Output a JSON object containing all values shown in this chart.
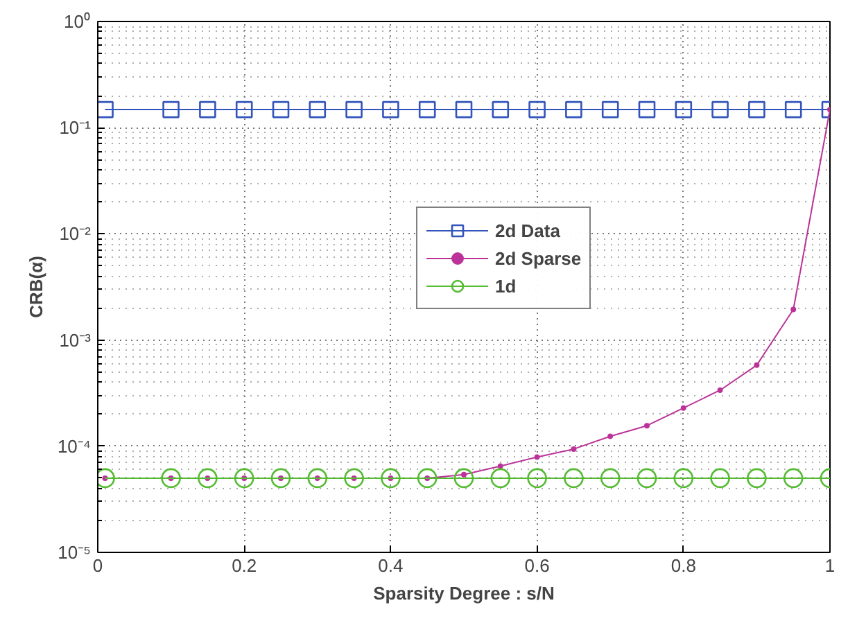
{
  "chart_data": {
    "type": "line",
    "xlabel": "Sparsity Degree : s/N",
    "ylabel": "CRB(α)",
    "x": [
      0.01,
      0.1,
      0.15,
      0.2,
      0.25,
      0.3,
      0.35,
      0.4,
      0.45,
      0.5,
      0.55,
      0.6,
      0.65,
      0.7,
      0.75,
      0.8,
      0.85,
      0.9,
      0.95,
      1.0
    ],
    "series": [
      {
        "name": "2d Data",
        "color": "#3355bb",
        "marker": "square",
        "values": [
          0.148,
          0.148,
          0.148,
          0.148,
          0.148,
          0.148,
          0.148,
          0.148,
          0.148,
          0.148,
          0.148,
          0.148,
          0.148,
          0.148,
          0.148,
          0.148,
          0.148,
          0.148,
          0.148,
          0.148
        ]
      },
      {
        "name": "2d Sparse",
        "color": "#bb3399",
        "marker": "point",
        "values": [
          5e-05,
          5e-05,
          5e-05,
          5e-05,
          5e-05,
          5e-05,
          5e-05,
          5e-05,
          5e-05,
          5.4e-05,
          6.5e-05,
          7.9e-05,
          9.4e-05,
          0.000124,
          0.000156,
          0.000229,
          0.000337,
          0.00058,
          0.00194,
          0.148
        ]
      },
      {
        "name": "1d",
        "color": "#55bb33",
        "marker": "circle",
        "values": [
          5e-05,
          5e-05,
          5e-05,
          5e-05,
          5e-05,
          5e-05,
          5e-05,
          5e-05,
          5e-05,
          5e-05,
          5e-05,
          5e-05,
          5e-05,
          5e-05,
          5e-05,
          5e-05,
          5e-05,
          5e-05,
          5e-05,
          5e-05
        ]
      }
    ],
    "xlim": [
      0,
      1
    ],
    "xticks": [
      0,
      0.2,
      0.4,
      0.6,
      0.8,
      1
    ],
    "ylim": [
      1e-05,
      1
    ],
    "yticks": [
      {
        "value": 1e-05,
        "label": "10⁻⁵"
      },
      {
        "value": 0.0001,
        "label": "10⁻⁴"
      },
      {
        "value": 0.001,
        "label": "10⁻³"
      },
      {
        "value": 0.01,
        "label": "10⁻²"
      },
      {
        "value": 0.1,
        "label": "10⁻¹"
      },
      {
        "value": 1,
        "label": "10⁰"
      }
    ],
    "log": "y",
    "grid": true,
    "legend": "center",
    "line_style": "solid"
  }
}
